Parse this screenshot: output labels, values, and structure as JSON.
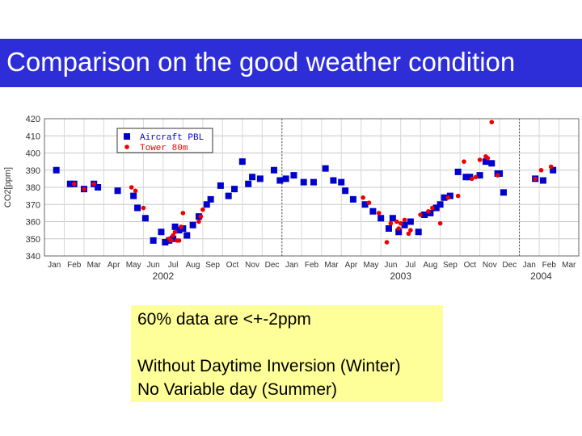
{
  "title": "Comparison on the good weather condition",
  "notes": {
    "line1": "60% data are <+-2ppm",
    "line2": "Without Daytime Inversion (Winter)",
    "line3": "No Variable day (Summer)"
  },
  "colors": {
    "title_bg": "#2e2ed8",
    "note_bg": "#ffff99",
    "aircraft": "#0000cc",
    "tower": "#ee0000"
  },
  "chart_data": {
    "type": "scatter",
    "title": "",
    "xlabel": "",
    "ylabel": "CO2[ppm]",
    "ylim": [
      340,
      420
    ],
    "yticks": [
      340,
      350,
      360,
      370,
      380,
      390,
      400,
      410,
      420
    ],
    "xlim": [
      0,
      27
    ],
    "month_labels": [
      "Jan",
      "Feb",
      "Mar",
      "Apr",
      "May",
      "Jun",
      "Jul",
      "Aug",
      "Sep",
      "Oct",
      "Nov",
      "Dec",
      "Jan",
      "Feb",
      "Mar",
      "Apr",
      "May",
      "Jun",
      "Jul",
      "Aug",
      "Sep",
      "Oct",
      "Nov",
      "Dec",
      "Jan",
      "Feb",
      "Mar"
    ],
    "year_labels": [
      {
        "label": "2002",
        "x": 6
      },
      {
        "label": "2003",
        "x": 18
      },
      {
        "label": "2004",
        "x": 25.1
      }
    ],
    "year_dividers": [
      12,
      24
    ],
    "grid": true,
    "legend_position": "top-left",
    "series": [
      {
        "name": "Aircraft PBL",
        "marker": "square",
        "x": [
          0.6,
          1.3,
          1.5,
          2.0,
          2.5,
          2.7,
          3.7,
          4.5,
          4.7,
          5.1,
          5.5,
          5.9,
          6.1,
          6.3,
          6.5,
          6.6,
          6.8,
          7.0,
          7.2,
          7.5,
          7.8,
          8.2,
          8.4,
          8.9,
          9.3,
          9.6,
          10.0,
          10.3,
          10.5,
          10.9,
          11.6,
          11.9,
          12.2,
          12.6,
          13.1,
          13.6,
          14.2,
          14.6,
          15.0,
          15.2,
          15.6,
          16.2,
          16.6,
          17.0,
          17.4,
          17.6,
          17.9,
          18.2,
          18.5,
          18.9,
          19.2,
          19.5,
          19.8,
          20.0,
          20.2,
          20.5,
          20.9,
          21.3,
          21.5,
          22.0,
          22.3,
          22.6,
          22.9,
          23.0,
          23.2,
          24.8,
          25.2,
          25.7
        ],
        "y": [
          390,
          382,
          382,
          379,
          382,
          380,
          378,
          375,
          368,
          362,
          349,
          354,
          348,
          349,
          350,
          357,
          355,
          356,
          352,
          358,
          363,
          370,
          373,
          381,
          375,
          379,
          395,
          382,
          386,
          385,
          390,
          384,
          385,
          387,
          383,
          383,
          391,
          384,
          383,
          378,
          373,
          370,
          366,
          362,
          356,
          362,
          354,
          358,
          360,
          354,
          364,
          365,
          368,
          370,
          374,
          375,
          389,
          386,
          386,
          387,
          395,
          394,
          388,
          388,
          377,
          385,
          384,
          390
        ],
        "color": "#0000cc"
      },
      {
        "name": "Tower 80m",
        "marker": "circle",
        "x": [
          1.5,
          2.0,
          2.5,
          4.4,
          4.6,
          5.0,
          6.3,
          6.4,
          6.5,
          6.6,
          6.7,
          6.8,
          6.9,
          7.0,
          7.8,
          7.9,
          8.0,
          16.1,
          16.4,
          16.9,
          17.3,
          17.5,
          17.8,
          17.9,
          18.0,
          18.2,
          18.4,
          18.5,
          19.0,
          19.4,
          19.6,
          20.0,
          20.4,
          20.9,
          21.2,
          21.6,
          21.8,
          22.0,
          22.3,
          22.4,
          22.6,
          22.9,
          24.8,
          25.1,
          25.6
        ],
        "y": [
          382,
          379,
          382,
          380,
          378,
          368,
          350,
          349,
          352,
          354,
          349,
          349,
          357,
          365,
          360,
          363,
          367,
          374,
          371,
          365,
          348,
          359,
          360,
          356,
          359,
          361,
          353,
          355,
          364,
          366,
          368,
          359,
          374,
          375,
          395,
          385,
          386,
          396,
          398,
          397,
          418,
          387,
          385,
          390,
          392
        ],
        "color": "#ee0000"
      }
    ]
  }
}
